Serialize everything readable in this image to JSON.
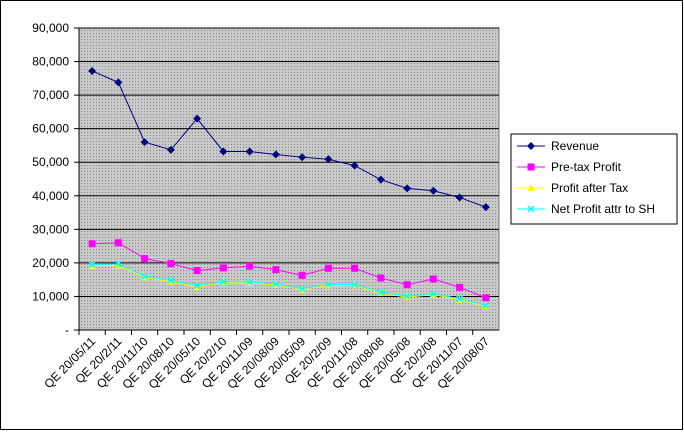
{
  "chart_data": {
    "type": "line",
    "categories": [
      "QE 20/05/11",
      "QE 20/2/11",
      "QE 20/11/10",
      "QE 20/08/10",
      "QE 20/05/10",
      "QE 20/2/10",
      "QE 20/11/09",
      "QE 20/08/09",
      "QE 20/05/09",
      "QE 20/2/09",
      "QE 20/11/08",
      "QE 20/08/08",
      "QE 20/05/08",
      "QE 20/2/08",
      "QE 20/11/07",
      "QE 20/08/07"
    ],
    "series": [
      {
        "name": "Revenue",
        "color": "#000080",
        "marker": "diamond",
        "values": [
          77200,
          73800,
          56000,
          53700,
          63000,
          53200,
          53200,
          52300,
          51500,
          50900,
          49000,
          44800,
          42200,
          41500,
          39500,
          36600
        ]
      },
      {
        "name": "Pre-tax Profit",
        "color": "#ff00ff",
        "marker": "square",
        "values": [
          25700,
          26000,
          21300,
          19800,
          17700,
          18500,
          19000,
          18000,
          16300,
          18400,
          18400,
          15500,
          13500,
          15200,
          12700,
          9600
        ]
      },
      {
        "name": "Profit after Tax",
        "color": "#ffff00",
        "marker": "triangle",
        "values": [
          19100,
          19300,
          15700,
          14400,
          12900,
          14200,
          14000,
          13500,
          12100,
          13300,
          13300,
          11000,
          9800,
          10500,
          9000,
          7000
        ]
      },
      {
        "name": "Net Profit attr to SH",
        "color": "#00ffff",
        "marker": "x",
        "values": [
          19500,
          19700,
          16000,
          14800,
          13200,
          14400,
          14300,
          13700,
          12300,
          13600,
          13500,
          11300,
          10100,
          10800,
          9300,
          7300
        ]
      }
    ],
    "ylim": [
      0,
      90000
    ],
    "yticks": [
      {
        "value": 0,
        "label": "-"
      },
      {
        "value": 10000,
        "label": "10,000"
      },
      {
        "value": 20000,
        "label": "20,000"
      },
      {
        "value": 30000,
        "label": "30,000"
      },
      {
        "value": 40000,
        "label": "40,000"
      },
      {
        "value": 50000,
        "label": "50,000"
      },
      {
        "value": 60000,
        "label": "60,000"
      },
      {
        "value": 70000,
        "label": "70,000"
      },
      {
        "value": 80000,
        "label": "80,000"
      },
      {
        "value": 90000,
        "label": "90,000"
      }
    ],
    "grid": true
  }
}
